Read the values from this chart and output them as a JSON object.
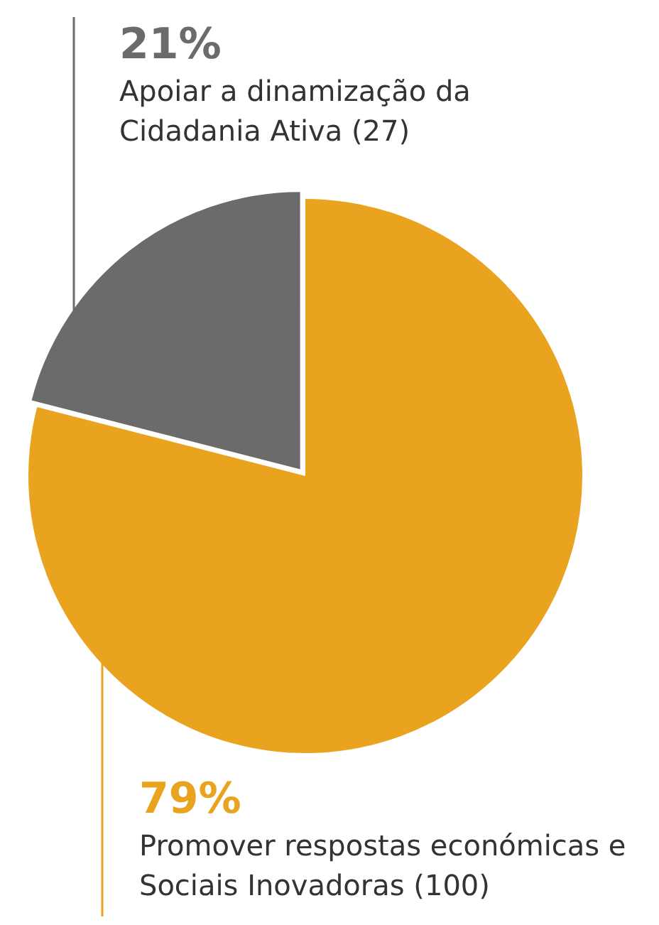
{
  "chart_data": {
    "type": "pie",
    "categories": [
      "Promover respostas económicas e Sociais Inovadoras (100)",
      "Apoiar a dinamização da Cidadania Ativa (27)"
    ],
    "values": [
      79,
      21
    ],
    "colors": [
      "#e9a31f",
      "#6b6b6b"
    ],
    "value_labels": [
      "79%",
      "21%"
    ],
    "legend": false
  }
}
